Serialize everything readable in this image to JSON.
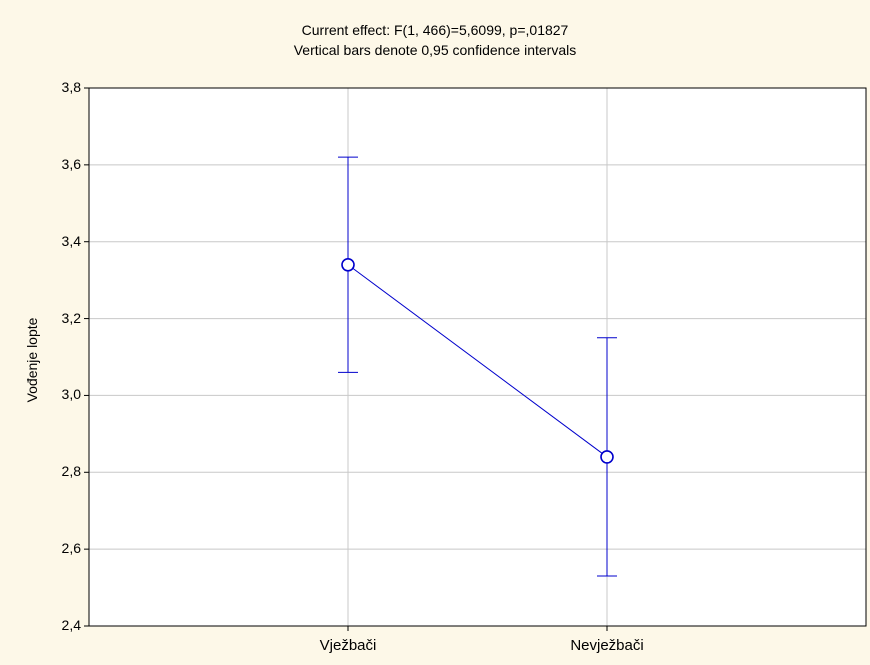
{
  "chart_data": {
    "type": "line",
    "title": "Current effect: F(1, 466)=5,6099, p=,01827",
    "subtitle": "Vertical bars denote 0,95 confidence intervals",
    "xlabel": "",
    "ylabel": "Vođenje lopte",
    "categories": [
      "Vježbači",
      "Nevježbači"
    ],
    "series": [
      {
        "values": [
          3.34,
          2.84
        ],
        "ci_lower": [
          3.06,
          2.53
        ],
        "ci_upper": [
          3.62,
          3.15
        ]
      }
    ],
    "ylim": [
      2.4,
      3.8
    ],
    "yticks": [
      2.4,
      2.6,
      2.8,
      3.0,
      3.2,
      3.4,
      3.6,
      3.8
    ],
    "ytick_labels": [
      "2,4",
      "2,6",
      "2,8",
      "3,0",
      "3,2",
      "3,4",
      "3,6",
      "3,8"
    ],
    "grid": true,
    "colors": {
      "series": "#0000cc",
      "grid": "#c8c8c8",
      "background": "#fdf8e8",
      "plot_background": "#ffffff",
      "axes": "#000000"
    }
  }
}
